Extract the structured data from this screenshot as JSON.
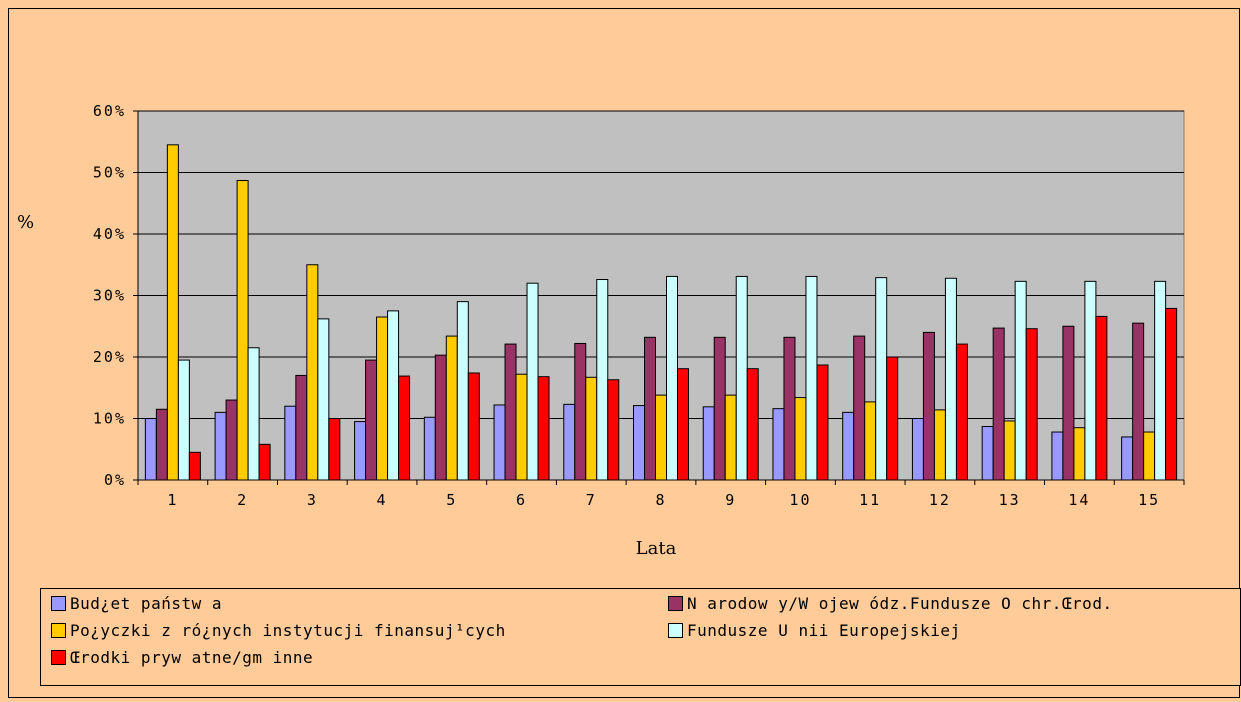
{
  "chart_data": {
    "type": "bar",
    "title": "",
    "xlabel": "Lata",
    "ylabel": "%",
    "ylim": [
      0,
      60
    ],
    "yticks": [
      "0%",
      "10%",
      "20%",
      "30%",
      "40%",
      "50%",
      "60%"
    ],
    "grid": true,
    "legend_position": "bottom",
    "categories": [
      "1",
      "2",
      "3",
      "4",
      "5",
      "6",
      "7",
      "8",
      "9",
      "10",
      "11",
      "12",
      "13",
      "14",
      "15"
    ],
    "series": [
      {
        "name": "Bud¿et państw a",
        "color": "#9999ff",
        "values": [
          10,
          11,
          12,
          9.5,
          10.2,
          12.2,
          12.3,
          12.1,
          11.9,
          11.6,
          11,
          10,
          8.7,
          7.8,
          7
        ]
      },
      {
        "name": "N arodow y/W ojew ódz.Fundusze O chr.Œrod.",
        "color": "#993366",
        "values": [
          11.5,
          13,
          17,
          19.5,
          20.3,
          22.1,
          22.2,
          23.2,
          23.2,
          23.2,
          23.4,
          24,
          24.7,
          25,
          25.5
        ]
      },
      {
        "name": "Po¿yczki z ró¿nych instytucji finansuj¹cych",
        "color": "#ffcc00",
        "values": [
          54.5,
          48.7,
          35,
          26.5,
          23.4,
          17.2,
          16.7,
          13.8,
          13.8,
          13.4,
          12.7,
          11.4,
          9.6,
          8.5,
          7.8
        ]
      },
      {
        "name": "Fundusze U nii Europejskiej",
        "color": "#ccffff",
        "values": [
          19.5,
          21.5,
          26.2,
          27.5,
          29,
          32,
          32.6,
          33.1,
          33.1,
          33.1,
          32.9,
          32.8,
          32.3,
          32.3,
          32.3
        ]
      },
      {
        "name": "Œrodki pryw atne/gm inne",
        "color": "#ff0000",
        "values": [
          4.5,
          5.8,
          10,
          16.9,
          17.4,
          16.8,
          16.3,
          18.1,
          18.1,
          18.7,
          20,
          22.1,
          24.6,
          26.6,
          27.9
        ]
      }
    ]
  }
}
